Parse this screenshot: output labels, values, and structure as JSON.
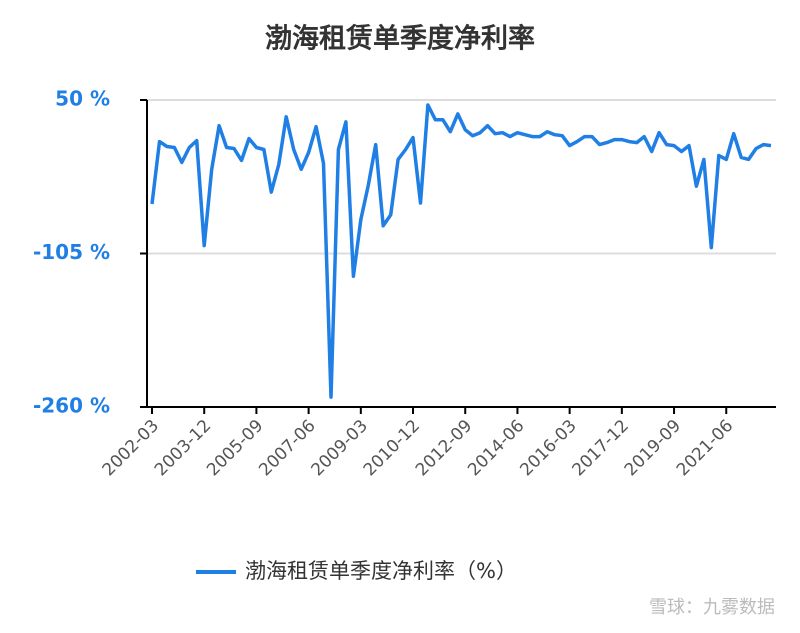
{
  "chart_data": {
    "type": "line",
    "title": "渤海租赁单季度净利率",
    "categories": [
      "2002-03",
      null,
      null,
      null,
      null,
      null,
      null,
      "2003-12",
      null,
      null,
      null,
      null,
      null,
      null,
      "2005-09",
      null,
      null,
      null,
      null,
      null,
      null,
      "2007-06",
      null,
      null,
      null,
      null,
      null,
      null,
      "2009-03",
      null,
      null,
      null,
      null,
      null,
      null,
      "2010-12",
      null,
      null,
      null,
      null,
      null,
      null,
      "2012-09",
      null,
      null,
      null,
      null,
      null,
      null,
      "2014-06",
      null,
      null,
      null,
      null,
      null,
      null,
      "2016-03",
      null,
      null,
      null,
      null,
      null,
      null,
      "2017-12",
      null,
      null,
      null,
      null,
      null,
      null,
      "2019-09",
      null,
      null,
      null,
      null,
      null,
      null,
      "2021-06",
      null,
      null,
      null,
      null,
      null,
      null
    ],
    "series": [
      {
        "name": "渤海租赁单季度净利率（%）",
        "color": "#1f7fe5",
        "values": [
          -55,
          8,
          3,
          2,
          -13,
          2,
          9,
          -97,
          -20,
          24,
          2,
          1,
          -11,
          11,
          2,
          0,
          -43,
          -15,
          33,
          0,
          -20,
          -3,
          23,
          -14,
          -250,
          0,
          28,
          -128,
          -71,
          -36,
          5,
          -77,
          -66,
          -10,
          0,
          12,
          -54,
          45,
          30,
          30,
          18,
          36,
          20,
          14,
          17,
          24,
          16,
          17,
          13,
          17,
          15,
          13,
          13,
          18,
          15,
          14,
          4,
          8,
          13,
          13,
          5,
          7,
          10,
          10,
          8,
          7,
          13,
          -2,
          17,
          5,
          4,
          -2,
          4,
          -37,
          -10,
          -99,
          -6,
          -10,
          16,
          -8,
          -10,
          1,
          5,
          4
        ]
      }
    ],
    "ylim": [
      -260,
      50
    ],
    "yticks": [
      {
        "value": -260,
        "label": "-260 %"
      },
      {
        "value": -105,
        "label": "-105 %"
      },
      {
        "value": 50,
        "label": "50 %"
      }
    ],
    "grid": true
  },
  "watermark": "雪球：九雾数据"
}
